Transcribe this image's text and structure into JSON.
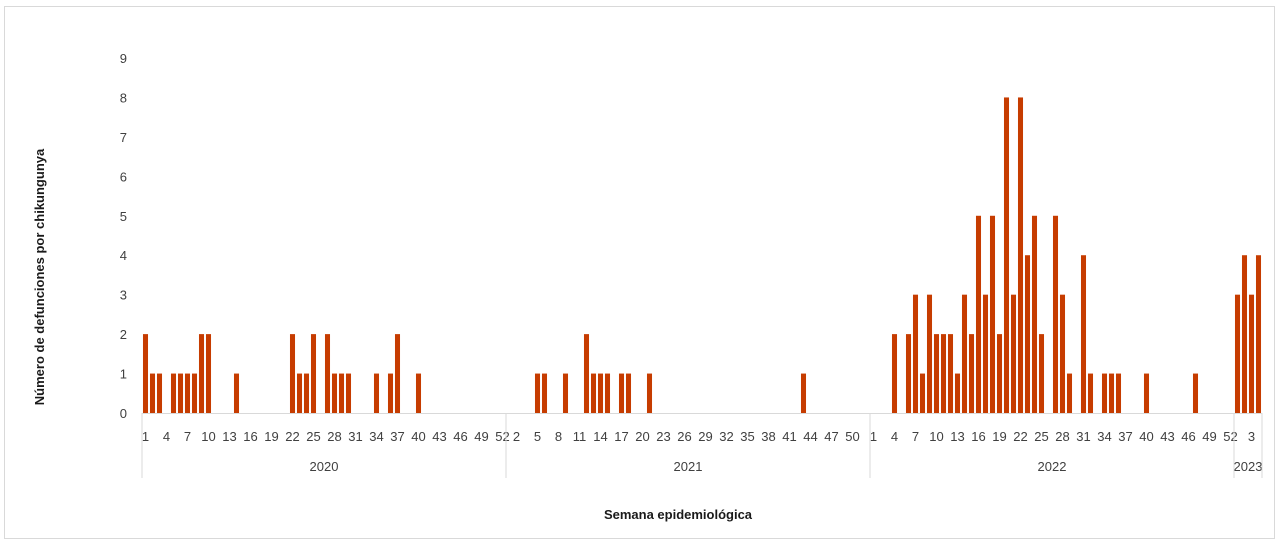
{
  "chart_data": {
    "type": "bar",
    "title": "",
    "xlabel": "Semana epidemiológica",
    "ylabel": "Número de defunciones por chikungunya",
    "ylim": [
      0,
      9
    ],
    "yticks": [
      0,
      1,
      2,
      3,
      4,
      5,
      6,
      7,
      8,
      9
    ],
    "grid": false,
    "legend": "none",
    "bar_color": "#c63c00",
    "x_groups": [
      {
        "label": "2020",
        "weeks": 52,
        "tick_labels": [
          1,
          4,
          7,
          10,
          13,
          16,
          19,
          22,
          25,
          28,
          31,
          34,
          37,
          40,
          43,
          46,
          49,
          52
        ],
        "values": [
          2,
          1,
          1,
          0,
          1,
          1,
          1,
          1,
          2,
          2,
          0,
          0,
          0,
          1,
          0,
          0,
          0,
          0,
          0,
          0,
          0,
          2,
          1,
          1,
          2,
          0,
          2,
          1,
          1,
          1,
          0,
          0,
          0,
          1,
          0,
          1,
          2,
          0,
          0,
          1,
          0,
          0,
          0,
          0,
          0,
          0,
          0,
          0,
          0,
          0,
          0,
          0
        ]
      },
      {
        "label": "2021",
        "weeks": 52,
        "tick_labels": [
          2,
          5,
          8,
          11,
          14,
          17,
          20,
          23,
          26,
          29,
          32,
          35,
          38,
          41,
          44,
          47,
          50
        ],
        "values": [
          0,
          0,
          0,
          0,
          1,
          1,
          0,
          0,
          1,
          0,
          0,
          2,
          1,
          1,
          1,
          0,
          1,
          1,
          0,
          0,
          1,
          0,
          0,
          0,
          0,
          0,
          0,
          0,
          0,
          0,
          0,
          0,
          0,
          0,
          0,
          0,
          0,
          0,
          0,
          0,
          0,
          0,
          1,
          0,
          0,
          0,
          0,
          0,
          0,
          0,
          0,
          0
        ]
      },
      {
        "label": "2022",
        "weeks": 52,
        "tick_labels": [
          1,
          4,
          7,
          10,
          13,
          16,
          19,
          22,
          25,
          28,
          31,
          34,
          37,
          40,
          43,
          46,
          49,
          52
        ],
        "values": [
          0,
          0,
          0,
          2,
          0,
          2,
          3,
          1,
          3,
          2,
          2,
          2,
          1,
          3,
          2,
          5,
          3,
          5,
          2,
          8,
          3,
          8,
          4,
          5,
          2,
          0,
          5,
          3,
          1,
          0,
          4,
          1,
          0,
          1,
          1,
          1,
          0,
          0,
          0,
          1,
          0,
          0,
          0,
          0,
          0,
          0,
          1,
          0,
          0,
          0,
          0,
          0
        ]
      },
      {
        "label": "2023",
        "weeks": 4,
        "tick_labels": [
          3
        ],
        "values": [
          3,
          4,
          3,
          4
        ]
      }
    ]
  }
}
